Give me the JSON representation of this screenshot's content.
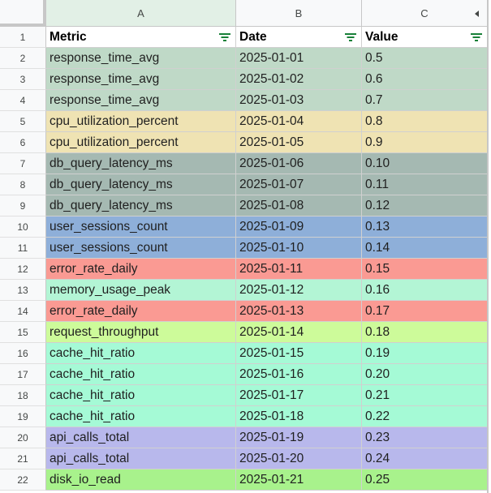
{
  "columns": {
    "a": "A",
    "b": "B",
    "c": "C"
  },
  "row_numbers": [
    "1",
    "2",
    "3",
    "4",
    "5",
    "6",
    "7",
    "8",
    "9",
    "10",
    "11",
    "12",
    "13",
    "14",
    "15",
    "16",
    "17",
    "18",
    "19",
    "20",
    "21",
    "22"
  ],
  "header": {
    "metric": "Metric",
    "date": "Date",
    "value": "Value"
  },
  "rows": [
    {
      "metric": "response_time_avg",
      "date": "2025-01-01",
      "value": "0.5",
      "color": "#bfd9c7"
    },
    {
      "metric": "response_time_avg",
      "date": "2025-01-02",
      "value": "0.6",
      "color": "#bfd9c7"
    },
    {
      "metric": "response_time_avg",
      "date": "2025-01-03",
      "value": "0.7",
      "color": "#bfd9c7"
    },
    {
      "metric": "cpu_utilization_percent",
      "date": "2025-01-04",
      "value": "0.8",
      "color": "#efe3b3"
    },
    {
      "metric": "cpu_utilization_percent",
      "date": "2025-01-05",
      "value": "0.9",
      "color": "#efe3b3"
    },
    {
      "metric": "db_query_latency_ms",
      "date": "2025-01-06",
      "value": "0.10",
      "color": "#a5b9b2"
    },
    {
      "metric": "db_query_latency_ms",
      "date": "2025-01-07",
      "value": "0.11",
      "color": "#a5b9b2"
    },
    {
      "metric": "db_query_latency_ms",
      "date": "2025-01-08",
      "value": "0.12",
      "color": "#a5b9b2"
    },
    {
      "metric": "user_sessions_count",
      "date": "2025-01-09",
      "value": "0.13",
      "color": "#8eafd9"
    },
    {
      "metric": "user_sessions_count",
      "date": "2025-01-10",
      "value": "0.14",
      "color": "#8eafd9"
    },
    {
      "metric": "error_rate_daily",
      "date": "2025-01-11",
      "value": "0.15",
      "color": "#fa9a93"
    },
    {
      "metric": "memory_usage_peak",
      "date": "2025-01-12",
      "value": "0.16",
      "color": "#b3f5d5"
    },
    {
      "metric": "error_rate_daily",
      "date": "2025-01-13",
      "value": "0.17",
      "color": "#fa9a93"
    },
    {
      "metric": "request_throughput",
      "date": "2025-01-14",
      "value": "0.18",
      "color": "#cdfb9a"
    },
    {
      "metric": "cache_hit_ratio",
      "date": "2025-01-15",
      "value": "0.19",
      "color": "#a5fad6"
    },
    {
      "metric": "cache_hit_ratio",
      "date": "2025-01-16",
      "value": "0.20",
      "color": "#a5fad6"
    },
    {
      "metric": "cache_hit_ratio",
      "date": "2025-01-17",
      "value": "0.21",
      "color": "#a5fad6"
    },
    {
      "metric": "cache_hit_ratio",
      "date": "2025-01-18",
      "value": "0.22",
      "color": "#a5fad6"
    },
    {
      "metric": "api_calls_total",
      "date": "2025-01-19",
      "value": "0.23",
      "color": "#b8b8ec"
    },
    {
      "metric": "api_calls_total",
      "date": "2025-01-20",
      "value": "0.24",
      "color": "#b8b8ec"
    },
    {
      "metric": "disk_io_read",
      "date": "2025-01-21",
      "value": "0.25",
      "color": "#a8f28c"
    }
  ],
  "icons": {
    "filter": "filter-icon",
    "scroll": "scroll-left-arrow-icon"
  }
}
